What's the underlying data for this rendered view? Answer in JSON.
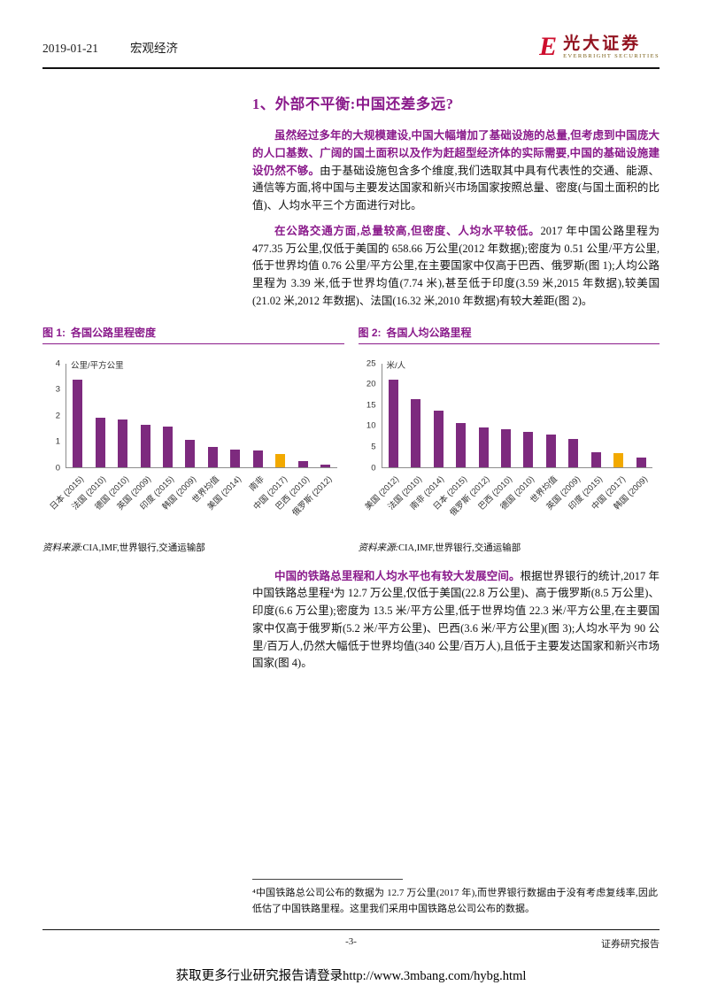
{
  "header": {
    "date": "2019-01-21",
    "category": "宏观经济",
    "logo_glyph": "E",
    "brand_cn": "光大证券",
    "brand_en": "EVERBRIGHT SECURITIES"
  },
  "title": "1、外部不平衡:中国还差多远?",
  "paragraphs": {
    "p1": [
      {
        "style": "lead",
        "text": "虽然经过多年的大规模建设,中国大幅增加了基础设施的总量,但考虑到中国庞大的人口基数、广阔的国土面积以及作为赶超型经济体的实际需要,中国的基础设施建设仍然不够。"
      },
      {
        "style": "normal",
        "text": "由于基础设施包含多个维度,我们选取其中具有代表性的交通、能源、通信等方面,将中国与主要发达国家和新兴市场国家按照总量、密度(与国土面积的比值)、人均水平三个方面进行对比。"
      }
    ],
    "p2": [
      {
        "style": "lead",
        "text": "在公路交通方面,总量较高,但密度、人均水平较低。"
      },
      {
        "style": "normal",
        "text": "2017 年中国公路里程为 477.35 万公里,仅低于美国的 658.66 万公里(2012 年数据);密度为 0.51 公里/平方公里,低于世界均值 0.76 公里/平方公里,在主要国家中仅高于巴西、俄罗斯(图 1);人均公路里程为 3.39 米,低于世界均值(7.74 米),甚至低于印度(3.59 米,2015 年数据),较美国(21.02 米,2012 年数据)、法国(16.32 米,2010 年数据)有较大差距(图 2)。"
      }
    ],
    "p3": [
      {
        "style": "lead",
        "text": "中国的铁路总里程和人均水平也有较大发展空间。"
      },
      {
        "style": "normal",
        "text": "根据世界银行的统计,2017 年中国铁路总里程⁴为 12.7 万公里,仅低于美国(22.8 万公里)、高于俄罗斯(8.5 万公里)、印度(6.6 万公里);密度为 13.5 米/平方公里,低于世界均值 22.3 米/平方公里,在主要国家中仅高于俄罗斯(5.2 米/平方公里)、巴西(3.6 米/平方公里)(图 3);人均水平为 90 公里/百万人,仍然大幅低于世界均值(340 公里/百万人),且低于主要发达国家和新兴市场国家(图 4)。"
      }
    ]
  },
  "chart_data": [
    {
      "type": "bar",
      "title_prefix": "图 1:",
      "title": "各国公路里程密度",
      "unit": "公里/平方公里",
      "ylim": [
        0,
        4
      ],
      "yticks": [
        0,
        1,
        2,
        3,
        4
      ],
      "grid": false,
      "legend": "none",
      "categories": [
        "日本 (2015)",
        "法国 (2010)",
        "德国 (2010)",
        "英国 (2009)",
        "印度 (2015)",
        "韩国 (2009)",
        "世界均值",
        "美国 (2014)",
        "南非",
        "中国 (2017)",
        "巴西 (2010)",
        "俄罗斯 (2012)"
      ],
      "values": [
        3.38,
        1.9,
        1.83,
        1.62,
        1.55,
        1.05,
        0.76,
        0.67,
        0.62,
        0.51,
        0.21,
        0.09
      ],
      "highlight_category": "中国 (2017)",
      "bar_color": "#7D2A7E",
      "highlight_color": "#F2A900",
      "source_label": "资料来源:",
      "source_text": "CIA,IMF,世界银行,交通运输部"
    },
    {
      "type": "bar",
      "title_prefix": "图 2:",
      "title": "各国人均公路里程",
      "unit": "米/人",
      "ylim": [
        0,
        25
      ],
      "yticks": [
        0,
        5,
        10,
        15,
        20,
        25
      ],
      "grid": false,
      "legend": "none",
      "categories": [
        "美国 (2012)",
        "法国 (2010)",
        "南非 (2014)",
        "日本 (2015)",
        "俄罗斯 (2012)",
        "巴西 (2010)",
        "德国 (2010)",
        "世界均值",
        "英国 (2009)",
        "印度 (2015)",
        "中国 (2017)",
        "韩国 (2009)"
      ],
      "values": [
        21.02,
        16.32,
        13.6,
        10.5,
        9.6,
        9.0,
        8.4,
        7.74,
        6.8,
        3.59,
        3.39,
        2.2
      ],
      "highlight_category": "中国 (2017)",
      "bar_color": "#7D2A7E",
      "highlight_color": "#F2A900",
      "source_label": "资料来源:",
      "source_text": "CIA,IMF,世界银行,交通运输部"
    }
  ],
  "footnote": {
    "text": "⁴中国铁路总公司公布的数据为 12.7 万公里(2017 年),而世界银行数据由于没有考虑复线率,因此低估了中国铁路里程。这里我们采用中国铁路总公司公布的数据。"
  },
  "footer": {
    "page_number": "-3-",
    "report_type": "证券研究报告"
  },
  "promo": "获取更多行业研究报告请登录http://www.3mbang.com/hybg.html"
}
